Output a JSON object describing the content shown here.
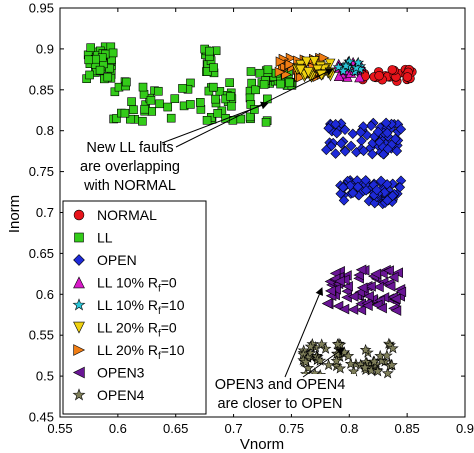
{
  "chart_data": {
    "type": "scatter",
    "xlabel": "Vnorm",
    "ylabel": "Inorm",
    "xlim": [
      0.55,
      0.9
    ],
    "ylim": [
      0.45,
      0.95
    ],
    "x_ticks": [
      "0.55",
      "0.6",
      "0.65",
      "0.7",
      "0.75",
      "0.8",
      "0.85",
      "0.9"
    ],
    "y_ticks": [
      "0.45",
      "0.5",
      "0.55",
      "0.6",
      "0.65",
      "0.7",
      "0.75",
      "0.8",
      "0.85",
      "0.9",
      "0.95"
    ],
    "grid": false,
    "legend_position": "left, lower half inside axes",
    "series": [
      {
        "name": "NORMAL",
        "marker": "circle",
        "color": "#e8141b",
        "clusters": [
          {
            "x": [
              0.81,
              0.855
            ],
            "y": [
              0.86,
              0.875
            ]
          }
        ]
      },
      {
        "name": "LL",
        "marker": "square",
        "color": "#33cc19",
        "clusters": [
          {
            "x": [
              0.573,
              0.596
            ],
            "y": [
              0.86,
              0.905
            ]
          },
          {
            "x": [
              0.596,
              0.73
            ],
            "y": [
              0.81,
              0.86
            ]
          },
          {
            "x": [
              0.675,
              0.685
            ],
            "y": [
              0.87,
              0.9
            ]
          },
          {
            "x": [
              0.715,
              0.752
            ],
            "y": [
              0.855,
              0.875
            ]
          }
        ]
      },
      {
        "name": "OPEN",
        "marker": "diamond",
        "color": "#1e2ad8",
        "clusters": [
          {
            "x": [
              0.78,
              0.845
            ],
            "y": [
              0.77,
              0.81
            ]
          },
          {
            "x": [
              0.79,
              0.845
            ],
            "y": [
              0.71,
              0.74
            ]
          }
        ]
      },
      {
        "name": "LL 10% R_f=0",
        "legend_label": {
          "pre": "LL 10% R",
          "sub": "f",
          "post": "=0"
        },
        "marker": "triangle-up",
        "color": "#d81ac8",
        "clusters": [
          {
            "x": [
              0.79,
              0.81
            ],
            "y": [
              0.865,
              0.885
            ]
          }
        ]
      },
      {
        "name": "LL 10% R_f=10",
        "legend_label": {
          "pre": "LL 10% R",
          "sub": "f",
          "post": "=10"
        },
        "marker": "star",
        "color": "#2bc6d8",
        "clusters": [
          {
            "x": [
              0.79,
              0.81
            ],
            "y": [
              0.87,
              0.885
            ]
          }
        ]
      },
      {
        "name": "LL 20% R_f=0",
        "legend_label": {
          "pre": "LL 20% R",
          "sub": "f",
          "post": "=0"
        },
        "marker": "triangle-down",
        "color": "#efd10f",
        "clusters": [
          {
            "x": [
              0.755,
              0.785
            ],
            "y": [
              0.865,
              0.885
            ]
          }
        ]
      },
      {
        "name": "LL 20% R_f=10",
        "legend_label": {
          "pre": "LL 20% R",
          "sub": "f",
          "post": "=10"
        },
        "marker": "triangle-right",
        "color": "#f07d14",
        "clusters": [
          {
            "x": [
              0.74,
              0.78
            ],
            "y": [
              0.865,
              0.89
            ]
          }
        ]
      },
      {
        "name": "OPEN3",
        "marker": "triangle-left",
        "color": "#6a1696",
        "clusters": [
          {
            "x": [
              0.78,
              0.845
            ],
            "y": [
              0.58,
              0.63
            ]
          }
        ]
      },
      {
        "name": "OPEN4",
        "marker": "star",
        "color": "#7f7f5a",
        "clusters": [
          {
            "x": [
              0.76,
              0.84
            ],
            "y": [
              0.5,
              0.54
            ]
          }
        ]
      }
    ],
    "annotations": [
      {
        "lines": [
          "New LL faults",
          "are overlapping",
          "with NORMAL"
        ]
      },
      {
        "lines": [
          "OPEN3 and OPEN4",
          "are closer to OPEN"
        ]
      }
    ]
  }
}
